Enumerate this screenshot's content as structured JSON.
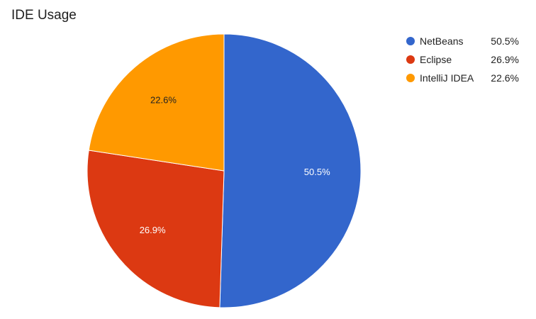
{
  "chart_data": {
    "type": "pie",
    "title": "IDE Usage",
    "slices": [
      {
        "label": "NetBeans",
        "value": 50.5,
        "display": "50.5%",
        "color": "#3366cc",
        "label_color": "#ffffff"
      },
      {
        "label": "Eclipse",
        "value": 26.9,
        "display": "26.9%",
        "color": "#dc3912",
        "label_color": "#ffffff"
      },
      {
        "label": "IntelliJ IDEA",
        "value": 22.6,
        "display": "22.6%",
        "color": "#ff9900",
        "label_color": "#222222"
      }
    ],
    "legend_position": "right"
  }
}
